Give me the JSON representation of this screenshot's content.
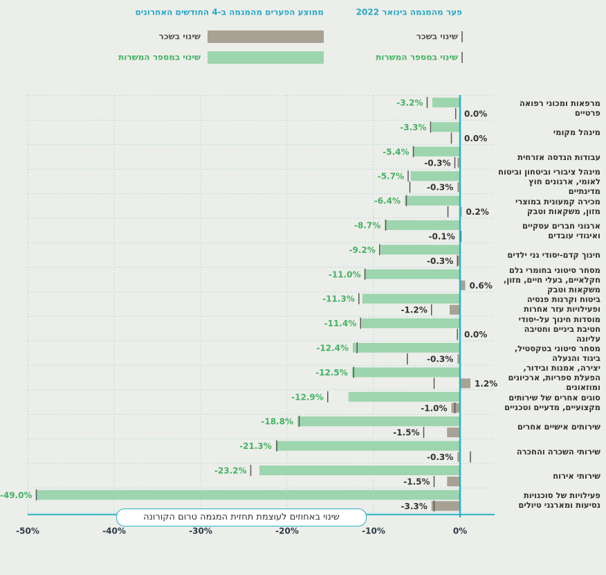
{
  "chart_data": {
    "type": "bar",
    "orientation": "horizontal",
    "legend_titles": [
      "פער מהמגמה בינואר 2022",
      "ממוצע הפערים מהמגמה ב-4 החודשים האחרונים"
    ],
    "x_label": "שינוי באחוזים לעוצמת תחזית המגמה טרום הקורונה",
    "categories": [
      "מרפאות ומכוני רפואה פרטיים",
      "מינהל מקומי",
      "עבודות הנדסה אזרחית",
      "מינהל ציבורי וביטחון וביטוח לאומי, ארגונים חוץ מדינתיים",
      "מכירה קמעונית במוצרי מזון, משקאות וטבק",
      "ארגוני חברים עסקיים ואיגודי עובדים",
      "חינוך קדם-יסודי גני ילדים",
      "מסחר סיטוני בחומרי גלם חקלאיים, בעלי חיים, מזון, משקאות וטבק",
      "ביטוח וקרנות פנסיה ופעילויות עזר אחרות",
      "מוסדות חינוך על-יסודי חטיבת ביניים וחטיבה עליונה",
      "מסחר סיטוני בטקסטיל, ביגוד והנעלה",
      "יצירה, אמנות ובידור, הפעלת ספריות, ארכיונים ומוזאונים",
      "סוגים אחרים של שירותים מקצועיים, מדעיים וטכניים",
      "שירותים אישיים אחרים",
      "שירותי השכרה והחכרה",
      "שירותי אירוח",
      "פעילויות של סוכנויות נסיעות ומארגני טיולים"
    ],
    "series": [
      {
        "name": "שינוי במספר המשרות",
        "color": "#9dd5ae",
        "label_color": "#45b265",
        "values": [
          -3.2,
          -3.3,
          -5.4,
          -5.7,
          -6.4,
          -8.7,
          -9.2,
          -11.0,
          -11.3,
          -11.4,
          -12.4,
          -12.5,
          -12.9,
          -18.8,
          -21.3,
          -23.2,
          -49.0
        ],
        "value_labels": [
          "-3.2%",
          "-3.3%",
          "-5.4%",
          "-5.7%",
          "-6.4%",
          "-8.7%",
          "-9.2%",
          "-11.0%",
          "-11.3%",
          "-11.4%",
          "-12.4%",
          "-12.5%",
          "-12.9%",
          "-18.8%",
          "-21.3%",
          "-23.2%",
          "-49.0%"
        ],
        "reference_values": [
          -3.8,
          -3.4,
          -5.4,
          -6.0,
          -6.2,
          -8.6,
          -9.3,
          -11.0,
          -11.7,
          -11.5,
          -11.9,
          -12.3,
          -15.3,
          -18.6,
          -21.2,
          -24.2,
          -49.0
        ]
      },
      {
        "name": "שינוי בשכר",
        "color": "#a8a294",
        "label_color": "#333333",
        "values": [
          0.0,
          0.0,
          -0.3,
          -0.3,
          0.2,
          -0.1,
          -0.3,
          0.6,
          -1.2,
          0.0,
          -0.3,
          1.2,
          -1.0,
          -1.5,
          -0.3,
          -1.5,
          -3.3
        ],
        "value_labels": [
          "0.0%",
          "0.0%",
          "-0.3%",
          "-0.3%",
          "0.2%",
          "-0.1%",
          "-0.3%",
          "0.6%",
          "-1.2%",
          "0.0%",
          "-0.3%",
          "1.2%",
          "-1.0%",
          "-1.5%",
          "-0.3%",
          "-1.5%",
          "-3.3%"
        ],
        "reference_values": [
          -0.5,
          -1.0,
          -0.6,
          -5.8,
          -1.4,
          0.1,
          -0.3,
          0.0,
          -3.3,
          -0.3,
          -6.1,
          -3.0,
          -0.6,
          -4.2,
          1.2,
          -3.0,
          -3.0
        ]
      }
    ],
    "reference_color": "#555555",
    "xlim": [
      -50,
      4
    ],
    "xticks": [
      {
        "value": -50,
        "label": "-50%"
      },
      {
        "value": -40,
        "label": "-40%"
      },
      {
        "value": -30,
        "label": "-30%"
      },
      {
        "value": -20,
        "label": "-20%"
      },
      {
        "value": -10,
        "label": "-10%"
      },
      {
        "value": 0,
        "label": "0%"
      }
    ],
    "grid": true
  }
}
